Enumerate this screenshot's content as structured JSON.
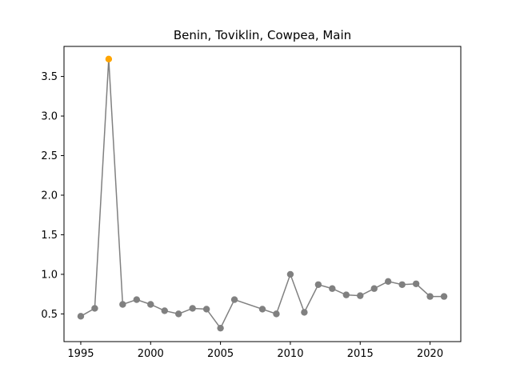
{
  "chart_data": {
    "type": "line",
    "title": "Benin, Toviklin, Cowpea, Main",
    "xlabel": "",
    "ylabel": "",
    "xlim": [
      1993.8,
      2022.2
    ],
    "ylim": [
      0.15,
      3.88
    ],
    "xticks": [
      1995,
      2000,
      2005,
      2010,
      2015,
      2020
    ],
    "yticks": [
      0.5,
      1.0,
      1.5,
      2.0,
      2.5,
      3.0,
      3.5
    ],
    "xtick_labels": [
      "1995",
      "2000",
      "2005",
      "2010",
      "2015",
      "2020"
    ],
    "ytick_labels": [
      "0.5",
      "1.0",
      "1.5",
      "2.0",
      "2.5",
      "3.0",
      "3.5"
    ],
    "grid": false,
    "line_color": "#808080",
    "marker_color": "#808080",
    "highlight_color": "#FFA500",
    "series": [
      {
        "x": [
          1995,
          1996,
          1997,
          1998,
          1999,
          2000,
          2001,
          2002,
          2003,
          2004,
          2005,
          2006,
          2008,
          2009,
          2010,
          2011,
          2012,
          2013,
          2014,
          2015,
          2016,
          2017,
          2018,
          2019,
          2020,
          2021
        ],
        "y": [
          0.47,
          0.57,
          3.72,
          0.62,
          0.68,
          0.62,
          0.54,
          0.5,
          0.57,
          0.56,
          0.32,
          0.68,
          0.56,
          0.5,
          1.0,
          0.52,
          0.87,
          0.82,
          0.74,
          0.73,
          0.82,
          0.91,
          0.87,
          0.88,
          0.72,
          0.72
        ]
      }
    ],
    "highlight_index": 2
  }
}
